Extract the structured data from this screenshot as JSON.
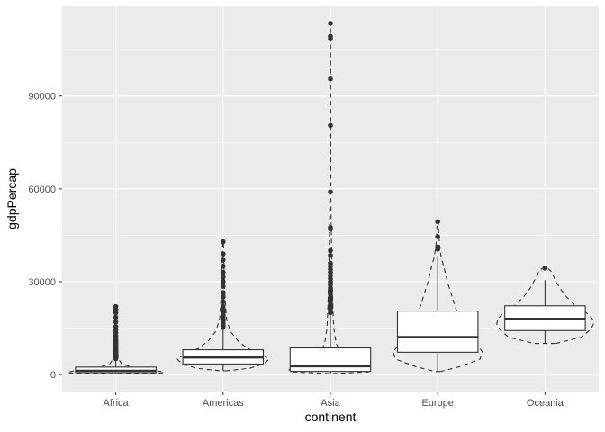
{
  "chart_data": {
    "type": "boxplot+violin",
    "title": "",
    "xlabel": "continent",
    "ylabel": "gdpPercap",
    "ylim": [
      -5500,
      119000
    ],
    "y_ticks": [
      0,
      30000,
      60000,
      90000
    ],
    "y_tick_labels": [
      "0",
      "30000",
      "60000",
      "90000"
    ],
    "grid": true,
    "legend": "none",
    "colors": {
      "panel": "#ebebeb",
      "grid": "#ffffff",
      "box_fill": "#ffffff",
      "box_stroke": "#333333",
      "violin_stroke": "#333333",
      "outlier": "#333333"
    },
    "categories": [
      "Africa",
      "Americas",
      "Asia",
      "Europe",
      "Oceania"
    ],
    "boxes": [
      {
        "name": "Africa",
        "q1": 600,
        "median": 1200,
        "q3": 2400,
        "whisker_low": 250,
        "whisker_high": 5000,
        "outliers": [
          5100,
          5300,
          5600,
          5900,
          6200,
          6500,
          6800,
          7100,
          7400,
          7700,
          8000,
          8400,
          8800,
          9200,
          9600,
          10100,
          10600,
          11200,
          11800,
          12500,
          13500,
          14500,
          15500,
          17000,
          18500,
          20000,
          21000,
          21950
        ]
      },
      {
        "name": "Americas",
        "q1": 3400,
        "median": 5500,
        "q3": 8000,
        "whisker_low": 1200,
        "whisker_high": 14900,
        "outliers": [
          15200,
          15800,
          16500,
          17200,
          18000,
          18800,
          19500,
          20200,
          21000,
          22000,
          23500,
          25000,
          26500,
          28500,
          30000,
          31500,
          33000,
          35000,
          37000,
          39000,
          42900
        ]
      },
      {
        "name": "Asia",
        "q1": 1000,
        "median": 2650,
        "q3": 8600,
        "whisker_low": 330,
        "whisker_high": 19500,
        "outliers": [
          20000,
          20500,
          21000,
          21500,
          22000,
          22500,
          23000,
          23500,
          24000,
          25000,
          26000,
          27000,
          28000,
          29000,
          30000,
          31000,
          32000,
          33000,
          34000,
          35000,
          36000,
          38500,
          40000,
          47000,
          47500,
          59000,
          80500,
          95500,
          108500,
          109300,
          113500
        ]
      },
      {
        "name": "Europe",
        "q1": 7200,
        "median": 12100,
        "q3": 20500,
        "whisker_low": 970,
        "whisker_high": 38400,
        "outliers": [
          40500,
          41200,
          44500,
          49400
        ]
      },
      {
        "name": "Oceania",
        "q1": 14200,
        "median": 18000,
        "q3": 22200,
        "whisker_low": 10040,
        "whisker_high": 30500,
        "outliers": [
          34400
        ]
      }
    ],
    "violins": [
      {
        "name": "Africa",
        "profile": [
          [
            250,
            0.05
          ],
          [
            500,
            0.95
          ],
          [
            800,
            1.0
          ],
          [
            1200,
            0.85
          ],
          [
            1800,
            0.5
          ],
          [
            2500,
            0.3
          ],
          [
            3500,
            0.12
          ],
          [
            5000,
            0.06
          ],
          [
            8000,
            0.03
          ],
          [
            12000,
            0.015
          ],
          [
            18000,
            0.01
          ],
          [
            21950,
            0.005
          ]
        ]
      },
      {
        "name": "Americas",
        "profile": [
          [
            1200,
            0.05
          ],
          [
            2000,
            0.55
          ],
          [
            3500,
            0.85
          ],
          [
            5000,
            0.95
          ],
          [
            6500,
            0.8
          ],
          [
            8500,
            0.5
          ],
          [
            11000,
            0.3
          ],
          [
            14000,
            0.15
          ],
          [
            18000,
            0.07
          ],
          [
            25000,
            0.04
          ],
          [
            32000,
            0.025
          ],
          [
            38000,
            0.015
          ],
          [
            42900,
            0.005
          ]
        ]
      },
      {
        "name": "Asia",
        "profile": [
          [
            330,
            0.05
          ],
          [
            800,
            0.78
          ],
          [
            1500,
            0.86
          ],
          [
            2500,
            0.75
          ],
          [
            4000,
            0.45
          ],
          [
            7000,
            0.22
          ],
          [
            10000,
            0.12
          ],
          [
            15000,
            0.07
          ],
          [
            22000,
            0.05
          ],
          [
            30000,
            0.04
          ],
          [
            40000,
            0.025
          ],
          [
            50000,
            0.015
          ],
          [
            60000,
            0.01
          ],
          [
            80000,
            0.008
          ],
          [
            100000,
            0.006
          ],
          [
            113500,
            0.003
          ]
        ]
      },
      {
        "name": "Europe",
        "profile": [
          [
            970,
            0.05
          ],
          [
            2500,
            0.45
          ],
          [
            5000,
            0.88
          ],
          [
            7500,
            0.92
          ],
          [
            10000,
            0.78
          ],
          [
            14000,
            0.6
          ],
          [
            18000,
            0.45
          ],
          [
            22000,
            0.36
          ],
          [
            26000,
            0.28
          ],
          [
            30000,
            0.2
          ],
          [
            34000,
            0.14
          ],
          [
            38000,
            0.07
          ],
          [
            42000,
            0.035
          ],
          [
            49400,
            0.01
          ]
        ]
      },
      {
        "name": "Oceania",
        "profile": [
          [
            10040,
            0.22
          ],
          [
            12000,
            0.75
          ],
          [
            14000,
            0.9
          ],
          [
            16000,
            1.0
          ],
          [
            18000,
            0.98
          ],
          [
            20000,
            0.85
          ],
          [
            22000,
            0.65
          ],
          [
            25000,
            0.45
          ],
          [
            28000,
            0.3
          ],
          [
            31000,
            0.2
          ],
          [
            33500,
            0.12
          ],
          [
            34400,
            0.05
          ]
        ]
      }
    ]
  }
}
